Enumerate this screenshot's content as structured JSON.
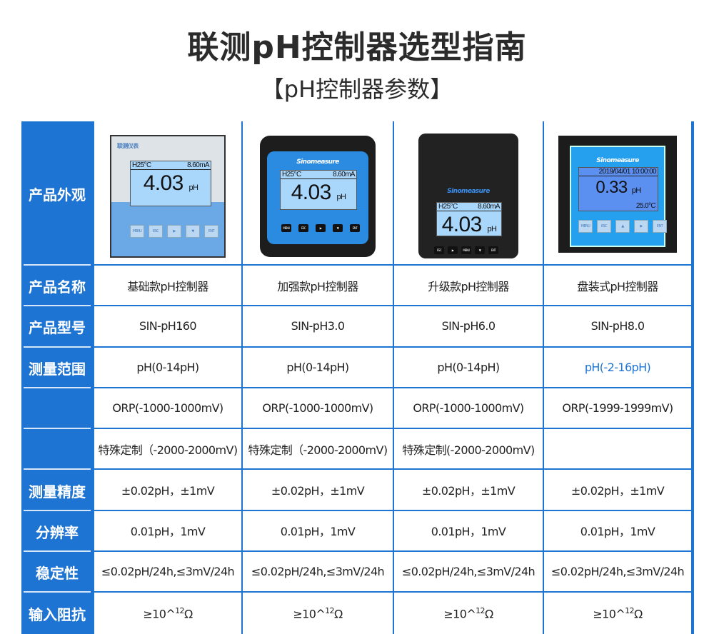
{
  "title": "联测pH控制器选型指南",
  "subtitle": "【pH控制器参数】",
  "row_labels": [
    "产品外观",
    "产品名称",
    "产品型号",
    "测量范围",
    "",
    "",
    "测量精度",
    "分辨率",
    "稳定性",
    "输入阻抗"
  ],
  "devices": [
    {
      "brand": "联测仪表",
      "line1_left": "H25°C",
      "line1_right": "8.60mA",
      "value": "4.03",
      "unit": "pH",
      "keys": [
        "MENU",
        "ESC",
        "▶",
        "▼",
        "ENT"
      ]
    },
    {
      "brand": "Sinomeasure",
      "line1_left": "H25°C",
      "line1_right": "8.60mA",
      "value": "4.03",
      "unit": "pH",
      "keys": [
        "MENU",
        "ESC",
        "▶",
        "▼",
        "ENT"
      ]
    },
    {
      "brand": "Sinomeasure",
      "line1_left": "H25°C",
      "line1_right": "8.60mA",
      "value": "4.03",
      "unit": "pH",
      "keys": [
        "ESC",
        "▶",
        "MENU",
        "▼",
        "ENT"
      ]
    },
    {
      "brand": "Sinomeasure",
      "line1_left": "",
      "line1_right": "2019/04/01 10:00:00",
      "value": "0.33",
      "unit": "pH",
      "temp": "25.0°C",
      "keys": [
        "MENU",
        "ESC",
        "▲",
        "▶",
        "ENT"
      ]
    }
  ],
  "rows": [
    [
      "基础款pH控制器",
      "加强款pH控制器",
      "升级款pH控制器",
      "盘装式pH控制器"
    ],
    [
      "SIN-pH160",
      "SIN-pH3.0",
      "SIN-pH6.0",
      "SIN-pH8.0"
    ],
    [
      "pH(0-14pH)",
      "pH(0-14pH)",
      "pH(0-14pH)",
      "pH(-2-16pH)"
    ],
    [
      "ORP(-1000-1000mV)",
      "ORP(-1000-1000mV)",
      "ORP(-1000-1000mV)",
      "ORP(-1999-1999mV)"
    ],
    [
      "特殊定制（-2000-2000mV)",
      "特殊定制（-2000-2000mV)",
      "特殊定制(-2000-2000mV)",
      ""
    ],
    [
      "±0.02pH，±1mV",
      "±0.02pH，±1mV",
      "±0.02pH，±1mV",
      "±0.02pH，±1mV"
    ],
    [
      "0.01pH，1mV",
      "0.01pH，1mV",
      "0.01pH，1mV",
      "0.01pH，1mV"
    ],
    [
      "≤0.02pH/24h,≤3mV/24h",
      "≤0.02pH/24h,≤3mV/24h",
      "≤0.02pH/24h,≤3mV/24h",
      "≤0.02pH/24h,≤3mV/24h"
    ]
  ],
  "impedance": {
    "prefix": "≥10^",
    "exp": "12",
    "suffix": "Ω"
  },
  "colors": {
    "accent": "#1e74d2",
    "highlight_text": "#1e74d2"
  }
}
